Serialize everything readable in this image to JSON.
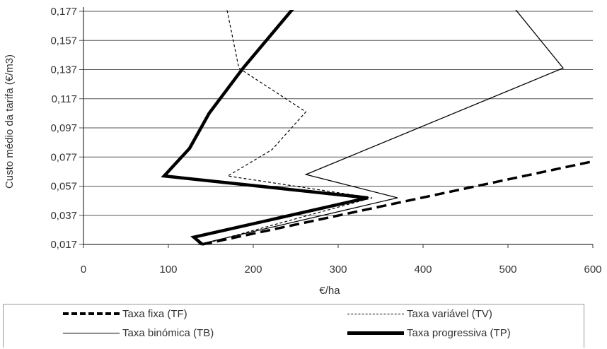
{
  "chart_data": {
    "type": "line",
    "xlabel": "€/ha",
    "ylabel": "Custo médio da tarifa (€/m3)",
    "xlim": [
      0,
      600
    ],
    "ylim": [
      0.017,
      0.177
    ],
    "x_ticks": [
      "0",
      "100",
      "200",
      "300",
      "400",
      "500",
      "600"
    ],
    "y_ticks": [
      "0,017",
      "0,037",
      "0,057",
      "0,077",
      "0,097",
      "0,117",
      "0,137",
      "0,157",
      "0,177"
    ],
    "grid": "horizontal",
    "legend_position": "bottom",
    "series": [
      {
        "name": "Taxa fixa (TF)",
        "style": "dashed-thick",
        "color": "#000000",
        "points": [
          [
            140,
            0.017
          ],
          [
            600,
            0.074
          ]
        ]
      },
      {
        "name": "Taxa variável (TV)",
        "style": "dashed-thin",
        "color": "#000000",
        "points": [
          [
            168,
            0.181
          ],
          [
            183,
            0.138
          ],
          [
            262,
            0.108
          ],
          [
            222,
            0.082
          ],
          [
            170,
            0.064
          ],
          [
            340,
            0.049
          ],
          [
            140,
            0.017
          ]
        ]
      },
      {
        "name": "Taxa binómica (TB)",
        "style": "solid-thin",
        "color": "#000000",
        "points": [
          [
            505,
            0.181
          ],
          [
            565,
            0.138
          ],
          [
            262,
            0.065
          ],
          [
            370,
            0.049
          ],
          [
            135,
            0.017
          ]
        ]
      },
      {
        "name": "Taxa progressiva (TP)",
        "style": "solid-thick",
        "color": "#000000",
        "points": [
          [
            250,
            0.181
          ],
          [
            188,
            0.138
          ],
          [
            148,
            0.107
          ],
          [
            125,
            0.083
          ],
          [
            95,
            0.064
          ],
          [
            335,
            0.049
          ],
          [
            130,
            0.022
          ],
          [
            140,
            0.017
          ]
        ]
      }
    ]
  }
}
